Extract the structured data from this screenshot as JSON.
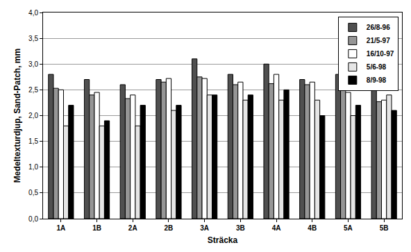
{
  "chart_data": {
    "type": "bar",
    "x_label": "Sträcka",
    "y_label": "Medeltexturdjup, Sand-Patch, mm",
    "categories": [
      "1A",
      "1B",
      "2A",
      "2B",
      "3A",
      "3B",
      "4A",
      "4B",
      "5A",
      "5B"
    ],
    "series": [
      {
        "name": "26/8-96",
        "color": "#505050",
        "values": [
          2.8,
          2.7,
          2.6,
          2.7,
          3.1,
          2.8,
          3.0,
          2.7,
          2.8,
          2.5
        ]
      },
      {
        "name": "21/5-97",
        "color": "#969696",
        "values": [
          2.53,
          2.4,
          2.33,
          2.65,
          2.75,
          2.6,
          2.62,
          2.6,
          2.5,
          2.27
        ]
      },
      {
        "name": "16/10-97",
        "color": "#ffffff",
        "values": [
          2.5,
          2.45,
          2.4,
          2.72,
          2.72,
          2.65,
          2.8,
          2.65,
          2.45,
          2.3
        ]
      },
      {
        "name": "5/6-98",
        "color": "#e6e6e6",
        "values": [
          1.8,
          1.8,
          1.8,
          2.1,
          2.4,
          2.3,
          2.3,
          2.3,
          2.0,
          2.4
        ]
      },
      {
        "name": "8/9-98",
        "color": "#000000",
        "values": [
          2.2,
          1.9,
          2.2,
          2.2,
          2.4,
          2.4,
          2.5,
          2.0,
          2.2,
          2.1
        ]
      }
    ],
    "ylim": [
      0,
      4
    ],
    "yticks": [
      {
        "value": 0,
        "label": "0,0"
      },
      {
        "value": 0.5,
        "label": "0,5"
      },
      {
        "value": 1,
        "label": "1,0"
      },
      {
        "value": 1.5,
        "label": "1,5"
      },
      {
        "value": 2,
        "label": "2,0"
      },
      {
        "value": 2.5,
        "label": "2,5"
      },
      {
        "value": 3,
        "label": "3,0"
      },
      {
        "value": 3.5,
        "label": "3,5"
      },
      {
        "value": 4,
        "label": "4,0"
      }
    ],
    "grid": true,
    "legend": "top right"
  }
}
